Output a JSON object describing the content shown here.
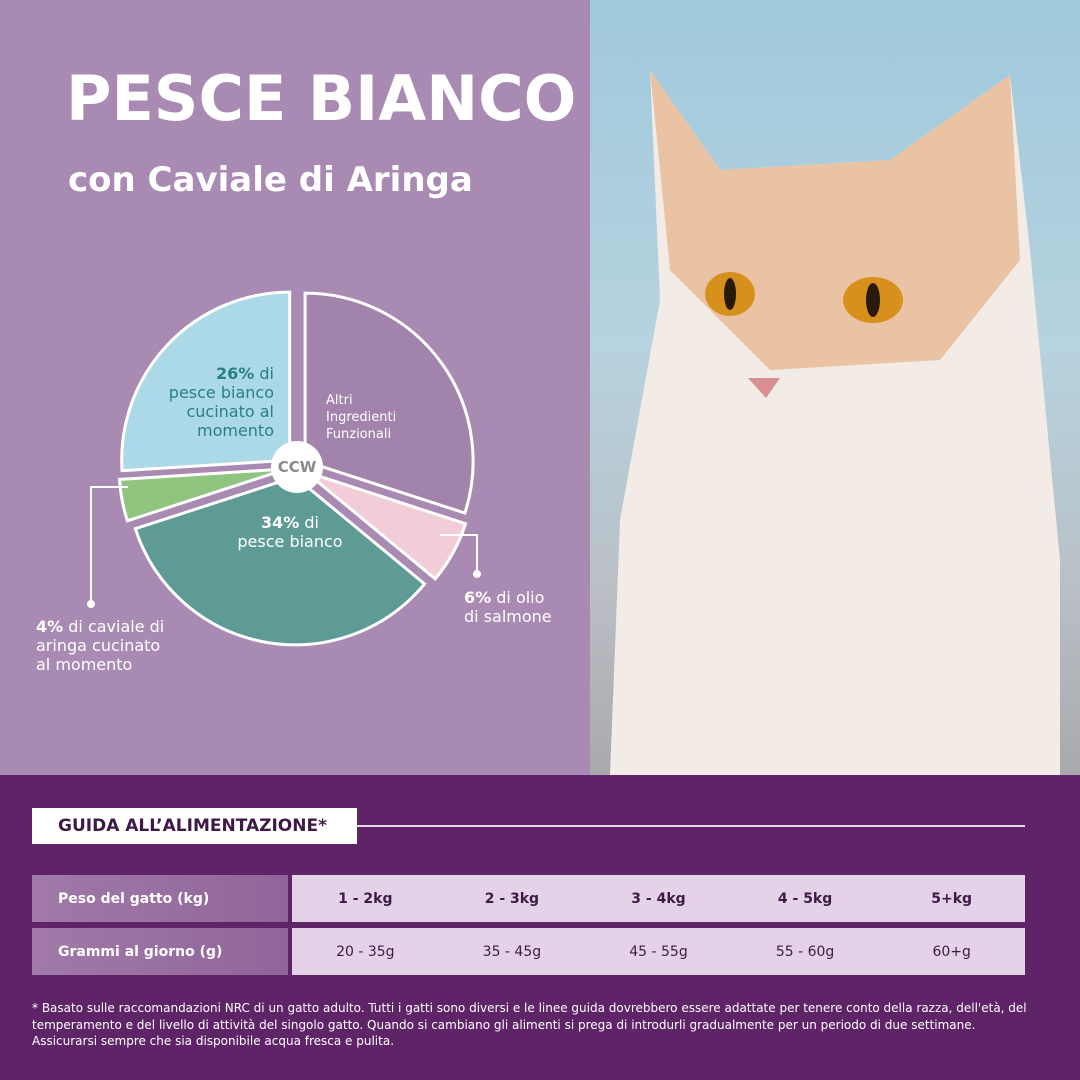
{
  "header": {
    "title": "PESCE BIANCO",
    "subtitle": "con Caviale di Aringa"
  },
  "chart_data": {
    "type": "pie",
    "direction": "counter-clockwise",
    "center_label": "CCW",
    "slices": [
      {
        "name": "pesce bianco cucinato al momento",
        "value": 26,
        "color": "#acd9e8"
      },
      {
        "name": "caviale di aringa cucinato al momento",
        "value": 4,
        "color": "#8fc57f"
      },
      {
        "name": "pesce bianco",
        "value": 34,
        "color": "#5e9b94"
      },
      {
        "name": "olio di salmone",
        "value": 6,
        "color": "#f2cdd8"
      },
      {
        "name": "Altri Ingredienti Funzionali",
        "value": 30,
        "color": "#a283ab"
      }
    ]
  },
  "labels": {
    "l26_pct": "26%",
    "l26_text": " di",
    "l26_lines": [
      "pesce bianco",
      "cucinato al",
      "momento"
    ],
    "altri": [
      "Altri",
      "Ingredienti",
      "Funzionali"
    ],
    "l34_pct": "34%",
    "l34_text": " di",
    "l34_line": "pesce bianco",
    "l6_pct": "6%",
    "l6_text": " di olio",
    "l6_line": "di salmone",
    "l4_pct": "4%",
    "l4_text": " di caviale di",
    "l4_lines": [
      "aringa cucinato",
      "al momento"
    ]
  },
  "guide": {
    "title": "GUIDA ALL’ALIMENTAZIONE*",
    "rows": [
      {
        "label": "Peso del gatto (kg)",
        "values": [
          "1 - 2kg",
          "2 - 3kg",
          "3 - 4kg",
          "4 - 5kg",
          "5+kg"
        ]
      },
      {
        "label": "Grammi al giorno (g)",
        "values": [
          "20 - 35g",
          "35 - 45g",
          "45 - 55g",
          "55 - 60g",
          "60+g"
        ]
      }
    ],
    "footnote": "* Basato sulle raccomandazioni NRC di un gatto adulto. Tutti i gatti sono diversi e le linee guida dovrebbero essere adattate per tenere conto della razza, dell'età, del temperamento e del livello di attività del singolo gatto. Quando si cambiano gli alimenti si prega di introdurli gradualmente per un periodo di due settimane. Assicurarsi sempre che sia disponibile acqua fresca e pulita."
  }
}
